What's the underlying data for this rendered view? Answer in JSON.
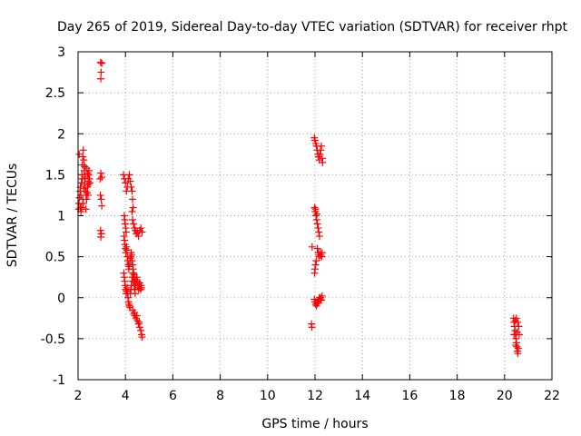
{
  "chart_data": {
    "type": "scatter",
    "title": "Day 265 of 2019, Sidereal Day-to-day VTEC variation (SDTVAR) for receiver rhpt",
    "xlabel": "GPS time / hours",
    "ylabel": "SDTVAR / TECUs",
    "xlim": [
      2,
      22
    ],
    "ylim": [
      -1,
      3
    ],
    "grid": true,
    "marker": "plus",
    "color": "#ff0000",
    "x_ticks": [
      "2",
      "4",
      "6",
      "8",
      "10",
      "12",
      "14",
      "16",
      "18",
      "20",
      "22"
    ],
    "y_ticks": [
      "-1",
      "-0.5",
      "0",
      "0.5",
      "1",
      "1.5",
      "2",
      "2.5",
      "3"
    ],
    "series": [
      {
        "name": "SDTVAR",
        "points": [
          [
            2.02,
            1.08
          ],
          [
            2.04,
            1.15
          ],
          [
            2.06,
            1.22
          ],
          [
            2.08,
            1.3
          ],
          [
            2.1,
            1.1
          ],
          [
            2.12,
            1.25
          ],
          [
            2.14,
            1.4
          ],
          [
            2.16,
            1.5
          ],
          [
            2.18,
            1.62
          ],
          [
            2.2,
            1.72
          ],
          [
            2.22,
            1.8
          ],
          [
            2.24,
            1.68
          ],
          [
            2.26,
            1.55
          ],
          [
            2.28,
            1.45
          ],
          [
            2.3,
            1.38
          ],
          [
            2.32,
            1.3
          ],
          [
            2.34,
            1.25
          ],
          [
            2.36,
            1.2
          ],
          [
            2.38,
            1.28
          ],
          [
            2.4,
            1.35
          ],
          [
            2.42,
            1.42
          ],
          [
            2.44,
            1.5
          ],
          [
            2.46,
            1.55
          ],
          [
            2.48,
            1.45
          ],
          [
            2.5,
            1.4
          ],
          [
            2.1,
            1.35
          ],
          [
            2.15,
            1.1
          ],
          [
            2.2,
            1.2
          ],
          [
            2.25,
            1.33
          ],
          [
            2.3,
            1.47
          ],
          [
            2.35,
            1.58
          ],
          [
            2.4,
            1.52
          ],
          [
            2.45,
            1.38
          ],
          [
            2.05,
            1.75
          ],
          [
            2.12,
            1.05
          ],
          [
            2.22,
            1.15
          ],
          [
            2.33,
            1.08
          ],
          [
            2.42,
            1.25
          ],
          [
            2.28,
            1.6
          ],
          [
            2.18,
            1.45
          ],
          [
            2.95,
            2.87
          ],
          [
            2.97,
            2.75
          ],
          [
            2.96,
            2.67
          ],
          [
            3.0,
            2.86
          ],
          [
            2.93,
            1.45
          ],
          [
            2.96,
            1.52
          ],
          [
            3.0,
            1.47
          ],
          [
            2.94,
            1.25
          ],
          [
            2.98,
            1.2
          ],
          [
            3.0,
            1.12
          ],
          [
            2.95,
            0.82
          ],
          [
            2.98,
            0.78
          ],
          [
            2.96,
            0.74
          ],
          [
            3.92,
            1.5
          ],
          [
            3.96,
            1.45
          ],
          [
            4.0,
            1.4
          ],
          [
            4.04,
            1.3
          ],
          [
            4.08,
            1.35
          ],
          [
            4.12,
            1.45
          ],
          [
            4.16,
            1.5
          ],
          [
            4.2,
            1.42
          ],
          [
            4.24,
            1.35
          ],
          [
            4.28,
            1.3
          ],
          [
            4.3,
            1.2
          ],
          [
            4.32,
            1.1
          ],
          [
            4.28,
            1.05
          ],
          [
            4.3,
            0.95
          ],
          [
            4.34,
            0.9
          ],
          [
            4.38,
            0.85
          ],
          [
            4.42,
            0.82
          ],
          [
            4.46,
            0.78
          ],
          [
            4.5,
            0.8
          ],
          [
            4.55,
            0.75
          ],
          [
            4.6,
            0.82
          ],
          [
            4.65,
            0.85
          ],
          [
            4.7,
            0.8
          ],
          [
            3.95,
            1.0
          ],
          [
            3.97,
            0.95
          ],
          [
            3.99,
            0.9
          ],
          [
            4.01,
            0.85
          ],
          [
            4.03,
            0.8
          ],
          [
            3.94,
            0.75
          ],
          [
            3.96,
            0.7
          ],
          [
            3.98,
            0.65
          ],
          [
            4.0,
            0.6
          ],
          [
            4.02,
            0.55
          ],
          [
            4.04,
            0.62
          ],
          [
            4.06,
            0.58
          ],
          [
            4.08,
            0.5
          ],
          [
            4.1,
            0.45
          ],
          [
            4.12,
            0.4
          ],
          [
            4.14,
            0.35
          ],
          [
            4.16,
            0.38
          ],
          [
            4.18,
            0.42
          ],
          [
            4.2,
            0.48
          ],
          [
            4.22,
            0.5
          ],
          [
            4.24,
            0.55
          ],
          [
            4.26,
            0.52
          ],
          [
            4.28,
            0.45
          ],
          [
            4.3,
            0.4
          ],
          [
            4.32,
            0.35
          ],
          [
            4.34,
            0.3
          ],
          [
            4.36,
            0.28
          ],
          [
            4.38,
            0.25
          ],
          [
            4.4,
            0.2
          ],
          [
            4.42,
            0.15
          ],
          [
            4.44,
            0.18
          ],
          [
            4.46,
            0.22
          ],
          [
            4.48,
            0.25
          ],
          [
            4.5,
            0.2
          ],
          [
            4.52,
            0.15
          ],
          [
            4.54,
            0.12
          ],
          [
            4.56,
            0.1
          ],
          [
            4.58,
            0.15
          ],
          [
            4.6,
            0.18
          ],
          [
            4.62,
            0.12
          ],
          [
            4.64,
            0.1
          ],
          [
            4.66,
            0.15
          ],
          [
            4.68,
            0.12
          ],
          [
            3.93,
            0.3
          ],
          [
            3.95,
            0.25
          ],
          [
            3.97,
            0.2
          ],
          [
            3.99,
            0.15
          ],
          [
            4.01,
            0.1
          ],
          [
            4.03,
            0.05
          ],
          [
            4.05,
            0.08
          ],
          [
            4.07,
            0.12
          ],
          [
            4.09,
            0.05
          ],
          [
            4.11,
            0.0
          ],
          [
            4.13,
            -0.05
          ],
          [
            4.15,
            -0.08
          ],
          [
            4.17,
            -0.1
          ],
          [
            4.19,
            -0.12
          ],
          [
            4.21,
            0.05
          ],
          [
            4.23,
            0.1
          ],
          [
            4.25,
            0.15
          ],
          [
            4.27,
            0.2
          ],
          [
            4.29,
            0.25
          ],
          [
            4.31,
            0.3
          ],
          [
            4.33,
            0.25
          ],
          [
            4.35,
            0.2
          ],
          [
            4.37,
            0.15
          ],
          [
            4.39,
            0.1
          ],
          [
            4.41,
            0.05
          ],
          [
            4.3,
            -0.15
          ],
          [
            4.35,
            -0.2
          ],
          [
            4.4,
            -0.22
          ],
          [
            4.45,
            -0.25
          ],
          [
            4.5,
            -0.28
          ],
          [
            4.55,
            -0.32
          ],
          [
            4.6,
            -0.36
          ],
          [
            4.65,
            -0.4
          ],
          [
            4.68,
            -0.45
          ],
          [
            4.7,
            -0.48
          ],
          [
            4.38,
            -0.18
          ],
          [
            4.48,
            -0.22
          ],
          [
            4.58,
            -0.3
          ],
          [
            11.85,
            -0.32
          ],
          [
            11.87,
            -0.36
          ],
          [
            11.88,
            0.62
          ],
          [
            11.97,
            1.95
          ],
          [
            12.0,
            1.92
          ],
          [
            12.03,
            1.88
          ],
          [
            12.06,
            1.85
          ],
          [
            12.09,
            1.8
          ],
          [
            12.12,
            1.75
          ],
          [
            12.15,
            1.72
          ],
          [
            12.18,
            1.68
          ],
          [
            12.21,
            1.75
          ],
          [
            12.24,
            1.8
          ],
          [
            12.27,
            1.85
          ],
          [
            12.3,
            1.7
          ],
          [
            12.32,
            1.65
          ],
          [
            11.98,
            1.1
          ],
          [
            12.01,
            1.05
          ],
          [
            12.04,
            1.0
          ],
          [
            12.07,
            0.95
          ],
          [
            12.1,
            0.9
          ],
          [
            12.13,
            0.85
          ],
          [
            12.16,
            0.8
          ],
          [
            12.19,
            0.75
          ],
          [
            12.02,
            1.08
          ],
          [
            12.08,
            1.02
          ],
          [
            12.1,
            0.6
          ],
          [
            12.13,
            0.55
          ],
          [
            12.16,
            0.52
          ],
          [
            12.19,
            0.5
          ],
          [
            12.22,
            0.55
          ],
          [
            12.25,
            0.52
          ],
          [
            12.28,
            0.5
          ],
          [
            12.3,
            0.55
          ],
          [
            12.05,
            0.45
          ],
          [
            12.02,
            0.4
          ],
          [
            12.0,
            0.35
          ],
          [
            11.98,
            0.3
          ],
          [
            11.97,
            -0.02
          ],
          [
            12.0,
            -0.05
          ],
          [
            12.03,
            -0.08
          ],
          [
            12.06,
            -0.1
          ],
          [
            12.09,
            -0.07
          ],
          [
            12.12,
            -0.05
          ],
          [
            12.15,
            -0.03
          ],
          [
            12.18,
            0.0
          ],
          [
            12.21,
            -0.02
          ],
          [
            12.24,
            0.0
          ],
          [
            12.27,
            -0.03
          ],
          [
            12.3,
            0.02
          ],
          [
            20.38,
            -0.25
          ],
          [
            20.4,
            -0.3
          ],
          [
            20.42,
            -0.35
          ],
          [
            20.44,
            -0.4
          ],
          [
            20.46,
            -0.45
          ],
          [
            20.48,
            -0.5
          ],
          [
            20.5,
            -0.55
          ],
          [
            20.52,
            -0.6
          ],
          [
            20.54,
            -0.65
          ],
          [
            20.56,
            -0.68
          ],
          [
            20.58,
            -0.62
          ],
          [
            20.45,
            -0.28
          ],
          [
            20.5,
            -0.25
          ],
          [
            20.55,
            -0.3
          ],
          [
            20.6,
            -0.35
          ],
          [
            20.62,
            -0.45
          ],
          [
            20.4,
            -0.45
          ],
          [
            20.48,
            -0.58
          ],
          [
            20.53,
            -0.42
          ]
        ]
      }
    ]
  }
}
